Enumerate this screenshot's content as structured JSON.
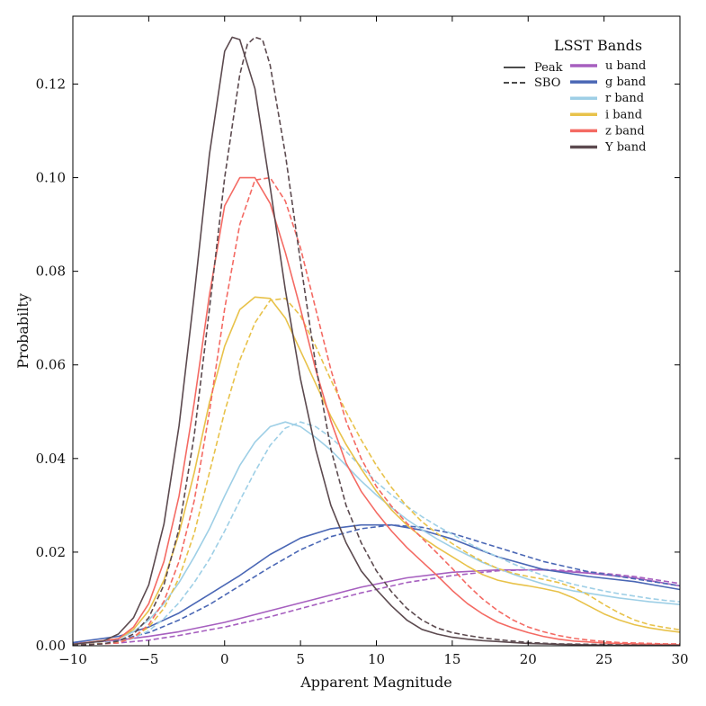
{
  "chart_data": {
    "type": "line",
    "title": "",
    "xlabel": "Apparent Magnitude",
    "ylabel": "Probabilty",
    "xlim": [
      -10,
      30
    ],
    "ylim": [
      0,
      0.1345
    ],
    "grid": false,
    "xticks": [
      -10,
      -5,
      0,
      5,
      10,
      15,
      20,
      25,
      30
    ],
    "xtick_labels": [
      "−10",
      "−5",
      "0",
      "5",
      "10",
      "15",
      "20",
      "25",
      "30"
    ],
    "yticks": [
      0,
      0.02,
      0.04,
      0.06,
      0.08,
      0.1,
      0.12
    ],
    "ytick_labels": [
      "0.00",
      "0.02",
      "0.04",
      "0.06",
      "0.08",
      "0.10",
      "0.12"
    ],
    "style_legend": {
      "items": [
        {
          "label": "Peak",
          "style": "solid"
        },
        {
          "label": "SBO",
          "style": "dashed"
        }
      ]
    },
    "band_legend": {
      "title": "LSST Bands",
      "placement": "top-right"
    },
    "series": [
      {
        "name": "u band",
        "color": "#a65fbf",
        "style": "solid",
        "x": [
          -10,
          -7,
          -5,
          -3,
          0,
          3,
          6,
          9,
          12,
          15,
          18,
          21,
          24,
          27,
          30
        ],
        "y": [
          0.0005,
          0.0012,
          0.002,
          0.003,
          0.005,
          0.0075,
          0.01,
          0.0125,
          0.0145,
          0.0157,
          0.0162,
          0.0162,
          0.0155,
          0.0145,
          0.0128
        ]
      },
      {
        "name": "u band",
        "color": "#a65fbf",
        "style": "dashed",
        "x": [
          -10,
          -7,
          -5,
          -3,
          0,
          3,
          6,
          9,
          12,
          15,
          18,
          21,
          24,
          27,
          30
        ],
        "y": [
          0.0002,
          0.0006,
          0.0012,
          0.0022,
          0.004,
          0.0062,
          0.0088,
          0.0113,
          0.0135,
          0.015,
          0.016,
          0.0163,
          0.0158,
          0.0148,
          0.0133
        ]
      },
      {
        "name": "g band",
        "color": "#4a67b5",
        "style": "solid",
        "x": [
          -10,
          -7,
          -5,
          -3,
          -1,
          1,
          3,
          5,
          7,
          9,
          11,
          13,
          15,
          18,
          21,
          24,
          27,
          30
        ],
        "y": [
          0.0007,
          0.002,
          0.004,
          0.007,
          0.011,
          0.015,
          0.0195,
          0.023,
          0.025,
          0.0258,
          0.0258,
          0.0247,
          0.0228,
          0.019,
          0.0163,
          0.0148,
          0.0137,
          0.012
        ]
      },
      {
        "name": "g band",
        "color": "#4a67b5",
        "style": "dashed",
        "x": [
          -10,
          -7,
          -5,
          -3,
          -1,
          1,
          3,
          5,
          7,
          9,
          11,
          13,
          15,
          18,
          21,
          24,
          27,
          30
        ],
        "y": [
          0.0004,
          0.0012,
          0.0028,
          0.0055,
          0.0088,
          0.0128,
          0.0168,
          0.0205,
          0.0233,
          0.025,
          0.0258,
          0.0253,
          0.024,
          0.021,
          0.018,
          0.0158,
          0.0143,
          0.0128
        ]
      },
      {
        "name": "r band",
        "color": "#9ecfe6",
        "style": "solid",
        "x": [
          -10,
          -7,
          -6,
          -5,
          -4,
          -3,
          -2,
          -1,
          0,
          1,
          2,
          3,
          4,
          5,
          6,
          7,
          8,
          9,
          10,
          11,
          12,
          13,
          14,
          15,
          16,
          17,
          18,
          19,
          20,
          21,
          22,
          23,
          24,
          25,
          26,
          27,
          28,
          29,
          30
        ],
        "y": [
          0.0003,
          0.0015,
          0.003,
          0.0055,
          0.009,
          0.0135,
          0.019,
          0.025,
          0.032,
          0.0385,
          0.0435,
          0.0468,
          0.0478,
          0.0468,
          0.0445,
          0.0418,
          0.0385,
          0.0352,
          0.0322,
          0.0295,
          0.027,
          0.0248,
          0.0228,
          0.021,
          0.0194,
          0.0178,
          0.0165,
          0.0153,
          0.0142,
          0.0132,
          0.0124,
          0.0117,
          0.0112,
          0.0107,
          0.0102,
          0.0098,
          0.0094,
          0.0091,
          0.0088
        ]
      },
      {
        "name": "r band",
        "color": "#9ecfe6",
        "style": "dashed",
        "x": [
          -10,
          -7,
          -6,
          -5,
          -4,
          -3,
          -2,
          -1,
          0,
          1,
          2,
          3,
          4,
          5,
          6,
          7,
          8,
          9,
          10,
          11,
          12,
          13,
          14,
          15,
          16,
          17,
          18,
          19,
          20,
          21,
          22,
          23,
          24,
          25,
          26,
          27,
          28,
          29,
          30
        ],
        "y": [
          0.0002,
          0.0007,
          0.0016,
          0.0032,
          0.0058,
          0.0092,
          0.0135,
          0.0185,
          0.0245,
          0.031,
          0.0372,
          0.0428,
          0.0465,
          0.0478,
          0.0468,
          0.0445,
          0.0415,
          0.0382,
          0.035,
          0.0322,
          0.0298,
          0.0276,
          0.0256,
          0.0238,
          0.022,
          0.0204,
          0.019,
          0.0175,
          0.0162,
          0.015,
          0.014,
          0.0131,
          0.0124,
          0.0117,
          0.0111,
          0.0106,
          0.0101,
          0.0097,
          0.0094
        ]
      },
      {
        "name": "i band",
        "color": "#e8c24a",
        "style": "solid",
        "x": [
          -10,
          -7,
          -6,
          -5,
          -4,
          -3,
          -2,
          -1,
          0,
          1,
          2,
          3,
          4,
          5,
          6,
          7,
          8,
          9,
          10,
          11,
          12,
          13,
          14,
          15,
          16,
          17,
          18,
          19,
          20,
          21,
          22,
          23,
          24,
          25,
          26,
          27,
          28,
          29,
          30
        ],
        "y": [
          0.0003,
          0.0015,
          0.0035,
          0.0075,
          0.014,
          0.024,
          0.037,
          0.052,
          0.064,
          0.0718,
          0.0745,
          0.0742,
          0.07,
          0.063,
          0.056,
          0.049,
          0.043,
          0.0378,
          0.033,
          0.029,
          0.0258,
          0.0232,
          0.021,
          0.019,
          0.017,
          0.0152,
          0.014,
          0.0133,
          0.0128,
          0.0122,
          0.0115,
          0.0102,
          0.0085,
          0.0068,
          0.0055,
          0.0045,
          0.0038,
          0.0033,
          0.0029
        ]
      },
      {
        "name": "i band",
        "color": "#e8c24a",
        "style": "dashed",
        "x": [
          -10,
          -7,
          -6,
          -5,
          -4,
          -3,
          -2,
          -1,
          0,
          1,
          2,
          3,
          4,
          5,
          6,
          7,
          8,
          9,
          10,
          11,
          12,
          13,
          14,
          15,
          16,
          17,
          18,
          19,
          20,
          21,
          22,
          23,
          24,
          25,
          26,
          27,
          28,
          29,
          30
        ],
        "y": [
          0.0001,
          0.0007,
          0.0018,
          0.004,
          0.008,
          0.0145,
          0.024,
          0.037,
          0.05,
          0.061,
          0.069,
          0.0738,
          0.0742,
          0.0705,
          0.064,
          0.0568,
          0.05,
          0.044,
          0.0385,
          0.0338,
          0.0298,
          0.0265,
          0.024,
          0.0218,
          0.0198,
          0.018,
          0.0165,
          0.0155,
          0.0148,
          0.0142,
          0.0135,
          0.0124,
          0.0108,
          0.0088,
          0.007,
          0.0055,
          0.0045,
          0.0039,
          0.0034
        ]
      },
      {
        "name": "z band",
        "color": "#f46a63",
        "style": "solid",
        "x": [
          -10,
          -7,
          -6,
          -5,
          -4,
          -3,
          -2,
          -1,
          0,
          1,
          2,
          3,
          4,
          5,
          6,
          7,
          8,
          9,
          10,
          11,
          12,
          13,
          14,
          15,
          16,
          17,
          18,
          19,
          20,
          21,
          22,
          23,
          24,
          25,
          26,
          27,
          28,
          29,
          30
        ],
        "y": [
          0.0003,
          0.0015,
          0.004,
          0.009,
          0.018,
          0.032,
          0.052,
          0.075,
          0.094,
          0.1,
          0.1,
          0.0945,
          0.084,
          0.072,
          0.059,
          0.048,
          0.039,
          0.033,
          0.0285,
          0.0245,
          0.021,
          0.018,
          0.015,
          0.0118,
          0.009,
          0.0068,
          0.005,
          0.0038,
          0.0028,
          0.002,
          0.0014,
          0.001,
          0.0008,
          0.0006,
          0.0005,
          0.0004,
          0.0003,
          0.0003,
          0.0002
        ]
      },
      {
        "name": "z band",
        "color": "#f46a63",
        "style": "dashed",
        "x": [
          -10,
          -7,
          -6,
          -5,
          -4,
          -3,
          -2,
          -1,
          0,
          1,
          2,
          3,
          4,
          5,
          6,
          7,
          8,
          9,
          10,
          11,
          12,
          13,
          14,
          15,
          16,
          17,
          18,
          19,
          20,
          21,
          22,
          23,
          24,
          25,
          26,
          27,
          28,
          29,
          30
        ],
        "y": [
          0.0001,
          0.0006,
          0.0018,
          0.0045,
          0.0095,
          0.018,
          0.031,
          0.05,
          0.072,
          0.09,
          0.0995,
          0.1,
          0.095,
          0.085,
          0.072,
          0.059,
          0.048,
          0.04,
          0.034,
          0.0298,
          0.0262,
          0.023,
          0.0198,
          0.0165,
          0.013,
          0.01,
          0.0075,
          0.0055,
          0.004,
          0.003,
          0.0022,
          0.0016,
          0.0012,
          0.0009,
          0.0007,
          0.0006,
          0.0005,
          0.0004,
          0.0004
        ]
      },
      {
        "name": "Y band",
        "color": "#5c4a4f",
        "style": "solid",
        "x": [
          -10,
          -8,
          -7,
          -6,
          -5,
          -4,
          -3,
          -2,
          -1,
          0,
          0.5,
          1,
          2,
          3,
          4,
          5,
          6,
          7,
          8,
          9,
          10,
          11,
          12,
          13,
          14,
          15,
          16,
          17,
          18,
          19,
          20,
          22,
          24,
          26,
          28,
          30
        ],
        "y": [
          0.0003,
          0.001,
          0.0025,
          0.006,
          0.013,
          0.026,
          0.047,
          0.075,
          0.105,
          0.127,
          0.13,
          0.1295,
          0.119,
          0.098,
          0.076,
          0.057,
          0.042,
          0.03,
          0.022,
          0.016,
          0.012,
          0.0085,
          0.0055,
          0.0035,
          0.0025,
          0.0018,
          0.0014,
          0.0011,
          0.0009,
          0.0007,
          0.0005,
          0.0003,
          0.0002,
          0.0001,
          0.0001,
          0.0001
        ]
      },
      {
        "name": "Y band",
        "color": "#5c4a4f",
        "style": "dashed",
        "x": [
          -10,
          -8,
          -7,
          -6,
          -5,
          -4,
          -3,
          -2,
          -1,
          0,
          1,
          1.5,
          2,
          2.5,
          3,
          4,
          5,
          6,
          7,
          8,
          9,
          10,
          11,
          12,
          13,
          14,
          15,
          16,
          17,
          18,
          19,
          20,
          22,
          24,
          26,
          28,
          30
        ],
        "y": [
          0.0001,
          0.0004,
          0.001,
          0.0025,
          0.006,
          0.013,
          0.025,
          0.045,
          0.072,
          0.1,
          0.122,
          0.1285,
          0.13,
          0.1295,
          0.124,
          0.105,
          0.082,
          0.06,
          0.042,
          0.03,
          0.022,
          0.016,
          0.0115,
          0.008,
          0.0055,
          0.0038,
          0.0028,
          0.0022,
          0.0017,
          0.0013,
          0.001,
          0.0007,
          0.0004,
          0.0003,
          0.0002,
          0.0001,
          0.0001
        ]
      }
    ],
    "bands": [
      {
        "label": "u band",
        "color": "#a65fbf"
      },
      {
        "label": "g band",
        "color": "#4a67b5"
      },
      {
        "label": "r band",
        "color": "#9ecfe6"
      },
      {
        "label": "i band",
        "color": "#e8c24a"
      },
      {
        "label": "z band",
        "color": "#f46a63"
      },
      {
        "label": "Y band",
        "color": "#5c4a4f"
      }
    ]
  }
}
